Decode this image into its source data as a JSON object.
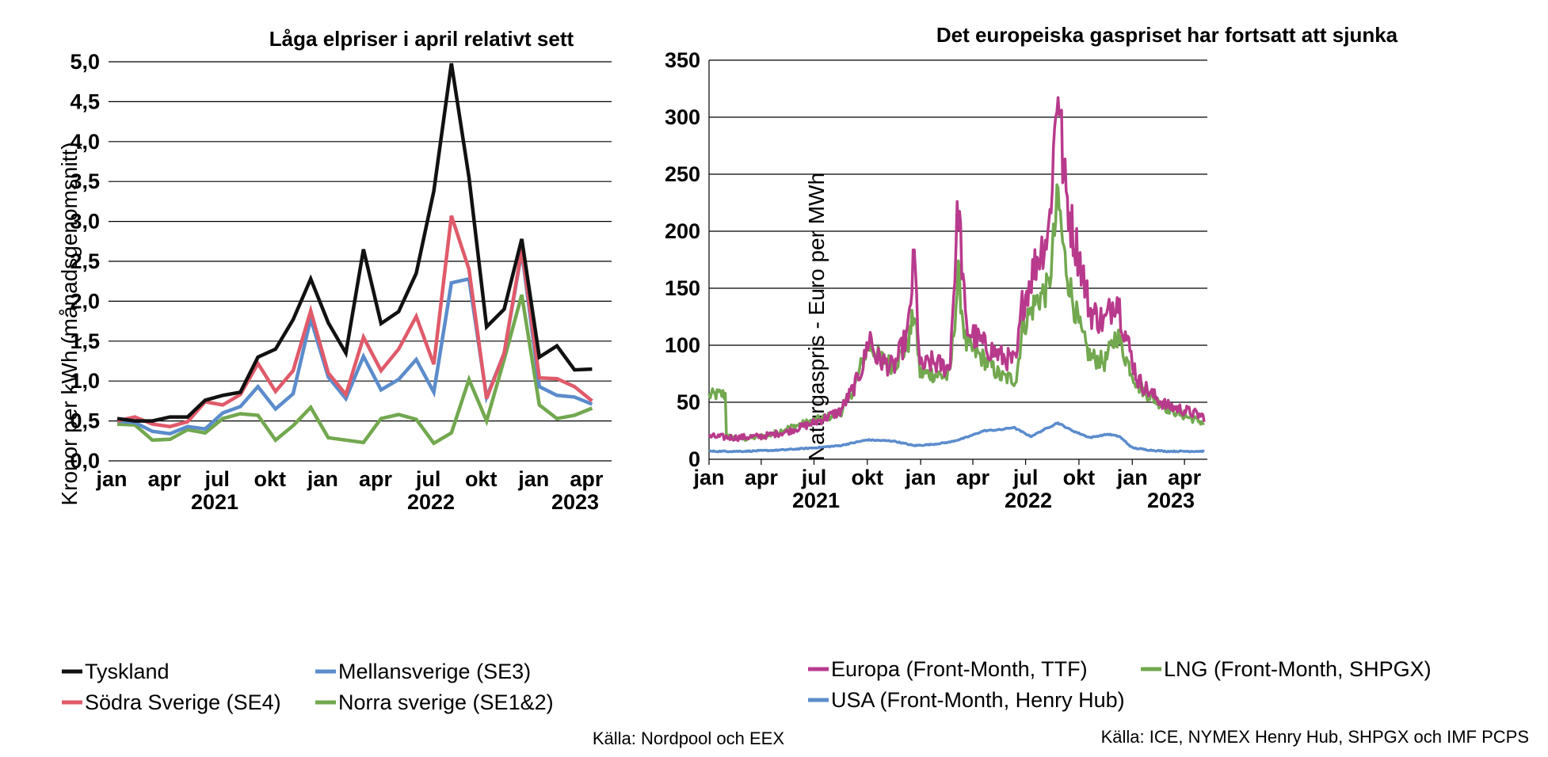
{
  "chart_data": [
    {
      "type": "line",
      "title": "Låga elpriser i april relativt sett",
      "ylabel": "Kronor per kWh (månadsgenomsnitt)",
      "ylim": [
        0,
        5
      ],
      "yticks": [
        "0,0",
        "0,5",
        "1,0",
        "1,5",
        "2,0",
        "2,5",
        "3,0",
        "3,5",
        "4,0",
        "4,5",
        "5,0"
      ],
      "xticks": [
        "jan",
        "apr",
        "jul",
        "okt",
        "jan",
        "apr",
        "jul",
        "okt",
        "jan",
        "apr"
      ],
      "years": [
        "2021",
        "2022",
        "2023"
      ],
      "categories": [
        "2021-01",
        "2021-02",
        "2021-03",
        "2021-04",
        "2021-05",
        "2021-06",
        "2021-07",
        "2021-08",
        "2021-09",
        "2021-10",
        "2021-11",
        "2021-12",
        "2022-01",
        "2022-02",
        "2022-03",
        "2022-04",
        "2022-05",
        "2022-06",
        "2022-07",
        "2022-08",
        "2022-09",
        "2022-10",
        "2022-11",
        "2022-12",
        "2023-01",
        "2023-02",
        "2023-03",
        "2023-04"
      ],
      "series": [
        {
          "name": "Tyskland",
          "color": "#111111",
          "values": [
            0.53,
            0.5,
            0.5,
            0.55,
            0.55,
            0.76,
            0.82,
            0.86,
            1.3,
            1.4,
            1.77,
            2.28,
            1.73,
            1.35,
            2.65,
            1.72,
            1.87,
            2.35,
            3.38,
            4.98,
            3.55,
            1.68,
            1.9,
            2.78,
            1.3,
            1.44,
            1.14,
            1.15
          ]
        },
        {
          "name": "Södra Sverige (SE4)",
          "color": "#e05a6a",
          "values": [
            0.5,
            0.55,
            0.46,
            0.43,
            0.49,
            0.74,
            0.7,
            0.83,
            1.22,
            0.87,
            1.13,
            1.88,
            1.1,
            0.83,
            1.55,
            1.13,
            1.4,
            1.81,
            1.21,
            3.07,
            2.4,
            0.78,
            1.35,
            2.65,
            1.04,
            1.03,
            0.93,
            0.75
          ]
        },
        {
          "name": "Mellansverige (SE3)",
          "color": "#5b8ccc",
          "values": [
            0.5,
            0.48,
            0.37,
            0.34,
            0.43,
            0.4,
            0.6,
            0.68,
            0.93,
            0.65,
            0.84,
            1.78,
            1.05,
            0.78,
            1.31,
            0.89,
            1.02,
            1.27,
            0.86,
            2.23,
            2.28,
            0.8,
            1.35,
            2.62,
            0.93,
            0.82,
            0.8,
            0.71
          ]
        },
        {
          "name": "Norra sverige (SE1&2)",
          "color": "#72a84f",
          "values": [
            0.46,
            0.45,
            0.26,
            0.27,
            0.39,
            0.35,
            0.53,
            0.59,
            0.57,
            0.26,
            0.44,
            0.67,
            0.29,
            0.26,
            0.23,
            0.53,
            0.58,
            0.52,
            0.22,
            0.35,
            1.02,
            0.5,
            1.27,
            2.08,
            0.7,
            0.53,
            0.57,
            0.66
          ]
        }
      ],
      "source": "Källa: Nordpool och EEX"
    },
    {
      "type": "line",
      "title": "Det europeiska gaspriset har fortsatt att sjunka",
      "ylabel": "Naturgaspris - Euro per MWh",
      "ylim": [
        0,
        350
      ],
      "yticks": [
        "0",
        "50",
        "100",
        "150",
        "200",
        "250",
        "300",
        "350"
      ],
      "xticks": [
        "jan",
        "apr",
        "jul",
        "okt",
        "jan",
        "apr",
        "jul",
        "okt",
        "jan",
        "apr"
      ],
      "years": [
        "2021",
        "2022",
        "2023"
      ],
      "x_start": "2021-01-01",
      "x_end": "2023-05-05",
      "anchors_note_free": true,
      "series": [
        {
          "name": "Europa (Front-Month, TTF)",
          "color": "#b83a8c",
          "noise": 7,
          "points": [
            [
              "2021-01-01",
              20
            ],
            [
              "2021-02-15",
              19
            ],
            [
              "2021-04-01",
              20
            ],
            [
              "2021-05-15",
              24
            ],
            [
              "2021-07-01",
              32
            ],
            [
              "2021-08-15",
              42
            ],
            [
              "2021-09-10",
              65
            ],
            [
              "2021-09-25",
              85
            ],
            [
              "2021-10-05",
              110
            ],
            [
              "2021-10-15",
              90
            ],
            [
              "2021-11-15",
              80
            ],
            [
              "2021-12-10",
              110
            ],
            [
              "2021-12-21",
              178
            ],
            [
              "2021-12-31",
              80
            ],
            [
              "2022-01-20",
              85
            ],
            [
              "2022-02-20",
              80
            ],
            [
              "2022-03-07",
              225
            ],
            [
              "2022-03-20",
              115
            ],
            [
              "2022-04-20",
              100
            ],
            [
              "2022-05-20",
              90
            ],
            [
              "2022-06-15",
              85
            ],
            [
              "2022-06-25",
              135
            ],
            [
              "2022-07-20",
              175
            ],
            [
              "2022-08-10",
              200
            ],
            [
              "2022-08-26",
              335
            ],
            [
              "2022-09-05",
              245
            ],
            [
              "2022-09-20",
              200
            ],
            [
              "2022-10-05",
              170
            ],
            [
              "2022-10-20",
              130
            ],
            [
              "2022-11-15",
              120
            ],
            [
              "2022-12-05",
              145
            ],
            [
              "2022-12-20",
              110
            ],
            [
              "2023-01-10",
              70
            ],
            [
              "2023-02-01",
              58
            ],
            [
              "2023-03-01",
              47
            ],
            [
              "2023-04-01",
              43
            ],
            [
              "2023-05-05",
              37
            ]
          ]
        },
        {
          "name": "LNG (Front-Month, SHPGX)",
          "color": "#72a84f",
          "noise": 6,
          "points": [
            [
              "2021-01-01",
              56
            ],
            [
              "2021-01-20",
              57
            ],
            [
              "2021-01-29",
              57
            ],
            [
              "2021-01-30",
              20
            ],
            [
              "2021-03-01",
              18
            ],
            [
              "2021-04-15",
              21
            ],
            [
              "2021-05-15",
              27
            ],
            [
              "2021-07-01",
              34
            ],
            [
              "2021-08-15",
              40
            ],
            [
              "2021-09-10",
              65
            ],
            [
              "2021-09-25",
              90
            ],
            [
              "2021-10-05",
              100
            ],
            [
              "2021-10-20",
              90
            ],
            [
              "2021-11-15",
              82
            ],
            [
              "2021-12-10",
              100
            ],
            [
              "2021-12-21",
              130
            ],
            [
              "2021-12-31",
              75
            ],
            [
              "2022-01-20",
              75
            ],
            [
              "2022-02-20",
              72
            ],
            [
              "2022-03-07",
              160
            ],
            [
              "2022-03-20",
              100
            ],
            [
              "2022-04-20",
              88
            ],
            [
              "2022-05-20",
              72
            ],
            [
              "2022-06-15",
              70
            ],
            [
              "2022-06-25",
              115
            ],
            [
              "2022-07-20",
              140
            ],
            [
              "2022-08-10",
              150
            ],
            [
              "2022-08-26",
              230
            ],
            [
              "2022-09-05",
              180
            ],
            [
              "2022-09-20",
              140
            ],
            [
              "2022-10-05",
              110
            ],
            [
              "2022-10-20",
              90
            ],
            [
              "2022-11-15",
              85
            ],
            [
              "2022-12-05",
              110
            ],
            [
              "2022-12-20",
              90
            ],
            [
              "2023-01-10",
              65
            ],
            [
              "2023-02-01",
              55
            ],
            [
              "2023-03-01",
              45
            ],
            [
              "2023-04-01",
              38
            ],
            [
              "2023-05-05",
              32
            ]
          ]
        },
        {
          "name": "USA (Front-Month, Henry Hub)",
          "color": "#5b8ccc",
          "noise": 1.2,
          "points": [
            [
              "2021-01-01",
              7
            ],
            [
              "2021-03-01",
              7
            ],
            [
              "2021-05-01",
              8
            ],
            [
              "2021-07-01",
              10
            ],
            [
              "2021-08-15",
              12
            ],
            [
              "2021-10-01",
              17
            ],
            [
              "2021-11-15",
              16
            ],
            [
              "2021-12-20",
              12
            ],
            [
              "2022-01-20",
              13
            ],
            [
              "2022-02-20",
              15
            ],
            [
              "2022-03-20",
              19
            ],
            [
              "2022-04-20",
              25
            ],
            [
              "2022-05-20",
              26
            ],
            [
              "2022-06-10",
              28
            ],
            [
              "2022-07-10",
              20
            ],
            [
              "2022-08-25",
              32
            ],
            [
              "2022-09-20",
              25
            ],
            [
              "2022-10-20",
              19
            ],
            [
              "2022-11-20",
              22
            ],
            [
              "2022-12-10",
              20
            ],
            [
              "2023-01-01",
              10
            ],
            [
              "2023-02-01",
              8
            ],
            [
              "2023-03-01",
              7
            ],
            [
              "2023-05-05",
              7
            ]
          ]
        }
      ],
      "source": "Källa: ICE, NYMEX Henry Hub, SHPGX och IMF PCPS"
    }
  ]
}
